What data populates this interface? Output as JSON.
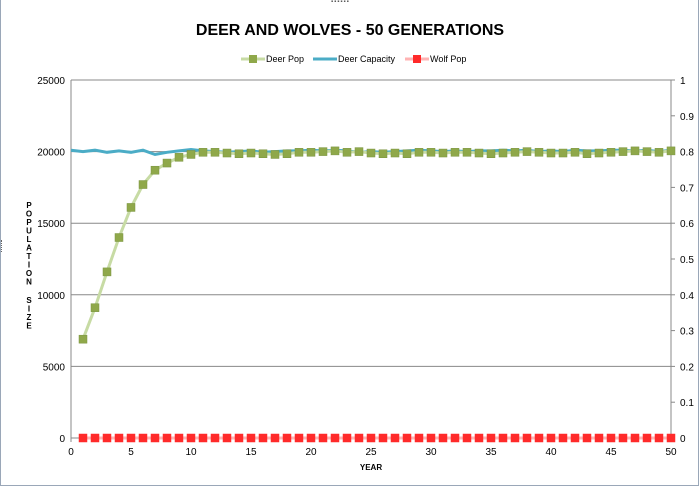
{
  "chart_data": {
    "type": "line",
    "title": "DEER AND WOLVES - 50 GENERATIONS",
    "xlabel": "YEAR",
    "ylabel": "POPULATION SIZE",
    "xlim": [
      0,
      50
    ],
    "ylim": [
      0,
      25000
    ],
    "y2lim": [
      0,
      1
    ],
    "x_ticks": [
      "0",
      "5",
      "10",
      "15",
      "20",
      "25",
      "30",
      "35",
      "40",
      "45",
      "50"
    ],
    "y_ticks": [
      "0",
      "5000",
      "10000",
      "15000",
      "20000",
      "25000"
    ],
    "y2_ticks": [
      "0",
      "0.1",
      "0.2",
      "0.3",
      "0.4",
      "0.5",
      "0.6",
      "0.7",
      "0.8",
      "0.9",
      "1"
    ],
    "grid": true,
    "legend_position": "top",
    "x": [
      0,
      1,
      2,
      3,
      4,
      5,
      6,
      7,
      8,
      9,
      10,
      11,
      12,
      13,
      14,
      15,
      16,
      17,
      18,
      19,
      20,
      21,
      22,
      23,
      24,
      25,
      26,
      27,
      28,
      29,
      30,
      31,
      32,
      33,
      34,
      35,
      36,
      37,
      38,
      39,
      40,
      41,
      42,
      43,
      44,
      45,
      46,
      47,
      48,
      49,
      50
    ],
    "series": [
      {
        "name": "Deer Pop",
        "color": "#8fa84a",
        "line_color": "#c7dba4",
        "marker": "square",
        "values": [
          null,
          6900,
          9100,
          11600,
          14000,
          16100,
          17700,
          18700,
          19200,
          19600,
          19800,
          19950,
          19950,
          19900,
          19850,
          19900,
          19850,
          19800,
          19850,
          19950,
          19950,
          20000,
          20050,
          19950,
          20000,
          19900,
          19850,
          19900,
          19850,
          19950,
          19950,
          19900,
          19950,
          19950,
          19900,
          19850,
          19900,
          19950,
          20000,
          19950,
          19900,
          19900,
          19950,
          19850,
          19900,
          19950,
          20000,
          20050,
          20000,
          19950,
          20050
        ]
      },
      {
        "name": "Deer Capacity",
        "color": "#4bacc6",
        "marker": "none",
        "values": [
          20100,
          20000,
          20100,
          19950,
          20050,
          19950,
          20100,
          19800,
          19950,
          20050,
          20150,
          20050,
          20000,
          19950,
          20000,
          20050,
          19950,
          20000,
          20050,
          20050,
          20100,
          20050,
          20100,
          20050,
          19950,
          20000,
          19950,
          20000,
          20050,
          20100,
          20050,
          20000,
          20050,
          20000,
          20050,
          20050,
          20100,
          20050,
          20100,
          20000,
          20050,
          20000,
          20100,
          20050,
          20050,
          20100,
          20100,
          20050,
          20100,
          20000,
          20100
        ]
      },
      {
        "name": "Wolf Pop",
        "color": "#ff2a2a",
        "line_color": "#ffb3b3",
        "marker": "square",
        "values": [
          null,
          0,
          0,
          0,
          0,
          0,
          0,
          0,
          0,
          0,
          0,
          0,
          0,
          0,
          0,
          0,
          0,
          0,
          0,
          0,
          0,
          0,
          0,
          0,
          0,
          0,
          0,
          0,
          0,
          0,
          0,
          0,
          0,
          0,
          0,
          0,
          0,
          0,
          0,
          0,
          0,
          0,
          0,
          0,
          0,
          0,
          0,
          0,
          0,
          0,
          0
        ]
      }
    ]
  }
}
